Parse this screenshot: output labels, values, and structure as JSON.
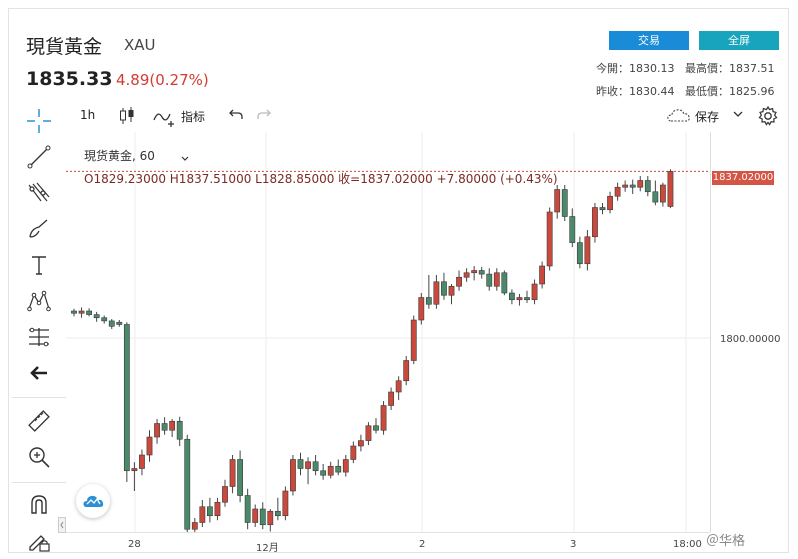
{
  "header": {
    "title": "現貨黃金",
    "symbol": "XAU",
    "price": "1835.33",
    "change": "4.89(0.27%)",
    "trade_label": "交易",
    "fullscreen_label": "全屏",
    "stats": {
      "open": "今開：1830.13",
      "high": "最高價：1837.51",
      "prev_close": "昨收：1830.44",
      "low": "最低價：1825.96"
    }
  },
  "toolbar": {
    "interval": "1h",
    "indicators_label": "指标",
    "save_label": "保存"
  },
  "chart": {
    "legend_title": "現货黄金, 60",
    "ohlc_text": "O1829.23000  H1837.51000  L1828.85000  收=1837.02000  +7.80000 (+0.43%)",
    "current_price_label": "1837.02000",
    "level_label": "1800.00000",
    "time_labels": [
      "28",
      "12月",
      "2",
      "3",
      "18:00"
    ],
    "watermark": "＠华格"
  },
  "chart_data": {
    "type": "candlestick",
    "title": "現货黄金, 60",
    "current_price": 1837.02,
    "y_tick": 1800.0,
    "x_labels": [
      "28",
      "12月",
      "2",
      "3",
      "18:00"
    ],
    "candles": [
      [
        1806,
        1806.5,
        1804.8,
        1805.5
      ],
      [
        1805.5,
        1806.8,
        1804.5,
        1806
      ],
      [
        1806,
        1806.6,
        1804.8,
        1805.2
      ],
      [
        1805.2,
        1805.8,
        1803.6,
        1804.5
      ],
      [
        1804.5,
        1805,
        1803.2,
        1803.8
      ],
      [
        1803.8,
        1804.2,
        1802,
        1802.6
      ],
      [
        1803.5,
        1804,
        1802.5,
        1803
      ],
      [
        1803,
        1803.5,
        1768,
        1770.5
      ],
      [
        1770.5,
        1772.4,
        1766,
        1771
      ],
      [
        1771,
        1775.2,
        1769.5,
        1774
      ],
      [
        1774,
        1779.5,
        1772.5,
        1778
      ],
      [
        1778,
        1782,
        1776.5,
        1781
      ],
      [
        1781,
        1782.4,
        1778.5,
        1779.5
      ],
      [
        1779.5,
        1782,
        1778,
        1781.5
      ],
      [
        1781.5,
        1782.5,
        1776,
        1777.5
      ],
      [
        1777.5,
        1778.5,
        1756,
        1757.5
      ],
      [
        1757.5,
        1760,
        1755.5,
        1759
      ],
      [
        1759,
        1764,
        1758,
        1762.5
      ],
      [
        1762.5,
        1764.5,
        1759,
        1760.5
      ],
      [
        1760.5,
        1764.5,
        1759.5,
        1763.5
      ],
      [
        1763.5,
        1768.5,
        1762.5,
        1767
      ],
      [
        1767,
        1774,
        1765.5,
        1773
      ],
      [
        1773,
        1775,
        1763.5,
        1765
      ],
      [
        1765,
        1766.5,
        1757.5,
        1759
      ],
      [
        1759,
        1763,
        1758,
        1762
      ],
      [
        1762,
        1763.5,
        1757.5,
        1758.5
      ],
      [
        1758.5,
        1762,
        1757,
        1761.5
      ],
      [
        1761.5,
        1764.5,
        1759.5,
        1760.5
      ],
      [
        1760.5,
        1767,
        1759.5,
        1766
      ],
      [
        1766,
        1774,
        1765,
        1773
      ],
      [
        1773,
        1774.5,
        1769.5,
        1771
      ],
      [
        1771,
        1773.5,
        1767.5,
        1772.5
      ],
      [
        1772.5,
        1774,
        1769.5,
        1770.5
      ],
      [
        1770.5,
        1772,
        1768.5,
        1769.5
      ],
      [
        1769.5,
        1772.5,
        1768.8,
        1771.5
      ],
      [
        1771.5,
        1773,
        1769.5,
        1770.2
      ],
      [
        1770.2,
        1774,
        1769.2,
        1773
      ],
      [
        1773,
        1777,
        1772.2,
        1776
      ],
      [
        1776,
        1778.5,
        1774.8,
        1777.2
      ],
      [
        1777.2,
        1781.3,
        1776.2,
        1780.5
      ],
      [
        1780.5,
        1782.2,
        1778.8,
        1779.5
      ],
      [
        1779.5,
        1786,
        1778.5,
        1785
      ],
      [
        1785,
        1789,
        1784,
        1788
      ],
      [
        1788,
        1791.5,
        1786.2,
        1790.5
      ],
      [
        1790.5,
        1796,
        1789.5,
        1795
      ],
      [
        1795,
        1805,
        1794.2,
        1804
      ],
      [
        1804,
        1810,
        1803,
        1809
      ],
      [
        1809,
        1814,
        1806.5,
        1807.5
      ],
      [
        1807.5,
        1814,
        1806.5,
        1812.5
      ],
      [
        1812.5,
        1814.5,
        1808.5,
        1809.5
      ],
      [
        1809.5,
        1812,
        1807.5,
        1811.5
      ],
      [
        1811.5,
        1815,
        1810.5,
        1813.5
      ],
      [
        1813.5,
        1815.5,
        1812.5,
        1814.5
      ],
      [
        1814.5,
        1816,
        1812.8,
        1815
      ],
      [
        1815,
        1815.8,
        1813.2,
        1814.2
      ],
      [
        1814.2,
        1815.5,
        1810.5,
        1811.5
      ],
      [
        1811.5,
        1815.5,
        1810.5,
        1814.5
      ],
      [
        1814.5,
        1815,
        1809.5,
        1810
      ],
      [
        1810,
        1810.8,
        1807.5,
        1808.5
      ],
      [
        1808.5,
        1809.8,
        1807.2,
        1809
      ],
      [
        1809,
        1810.5,
        1807.8,
        1808.5
      ],
      [
        1808.5,
        1813,
        1807.5,
        1812
      ],
      [
        1812,
        1817,
        1811,
        1816
      ],
      [
        1816,
        1829,
        1815,
        1828
      ],
      [
        1828,
        1834,
        1826.5,
        1833
      ],
      [
        1833,
        1834,
        1826,
        1827
      ],
      [
        1827,
        1828.8,
        1820.2,
        1821.2
      ],
      [
        1821.2,
        1822.5,
        1815.5,
        1816.5
      ],
      [
        1816.5,
        1824,
        1815,
        1822.5
      ],
      [
        1822.5,
        1830,
        1821.2,
        1829
      ],
      [
        1829,
        1830,
        1827.5,
        1828.5
      ],
      [
        1828.5,
        1832.5,
        1827.7,
        1831.5
      ],
      [
        1831.5,
        1834.5,
        1830.5,
        1833.5
      ],
      [
        1833.5,
        1835,
        1832.5,
        1834
      ],
      [
        1834,
        1835.2,
        1832,
        1833.5
      ],
      [
        1833.5,
        1836,
        1832.6,
        1835
      ],
      [
        1835,
        1836,
        1831.5,
        1832.5
      ],
      [
        1832.5,
        1835,
        1829.5,
        1830.2
      ],
      [
        1830.2,
        1834.5,
        1829.2,
        1834
      ],
      [
        1829.23,
        1837.51,
        1828.85,
        1837.02
      ]
    ]
  },
  "colors": {
    "up": "#c94a3c",
    "down": "#4a8a6a",
    "accent_trade": "#1a8bd6",
    "accent_full": "#19a4bd",
    "price_line": "#c94a3c"
  }
}
